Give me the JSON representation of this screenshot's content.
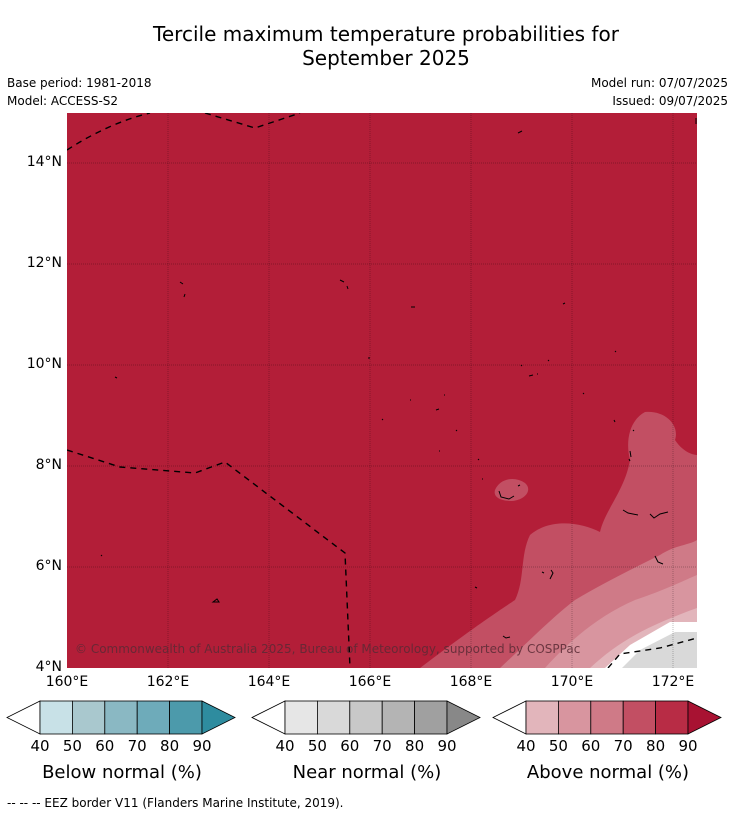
{
  "header": {
    "title_line1": "Tercile maximum temperature probabilities for",
    "title_line2": "September 2025",
    "base_period": "Base period: 1981-2018",
    "model": "Model: ACCESS-S2",
    "model_run": "Model run: 07/07/2025",
    "issued": "Issued: 09/07/2025"
  },
  "map": {
    "lat_labels": [
      "14°N",
      "12°N",
      "10°N",
      "8°N",
      "6°N",
      "4°N"
    ],
    "lon_labels": [
      "160°E",
      "162°E",
      "164°E",
      "166°E",
      "168°E",
      "170°E",
      "172°E"
    ],
    "attribution": "© Commonwealth of Australia 2025, Bureau of Meteorology, supported by COSPPac",
    "colors": {
      "above_90": "#b31e38",
      "above_80": "#c24f63",
      "above_70": "#cf7a87",
      "above_60": "#d8959f",
      "above_50": "#e2b5bb",
      "near_normal": "#d9d9d9"
    }
  },
  "colorbars": [
    {
      "title": "Below normal (%)",
      "ticks": [
        "40",
        "50",
        "60",
        "70",
        "80",
        "90"
      ],
      "colors": [
        "#c8e1e7",
        "#a9c8ce",
        "#8ab8c3",
        "#6eabba",
        "#4c9aab",
        "#2e8c9f"
      ]
    },
    {
      "title": "Near normal (%)",
      "ticks": [
        "40",
        "50",
        "60",
        "70",
        "80",
        "90"
      ],
      "colors": [
        "#e6e6e6",
        "#d9d9d9",
        "#c8c8c8",
        "#b4b4b4",
        "#a0a0a0",
        "#888888"
      ]
    },
    {
      "title": "Above normal (%)",
      "ticks": [
        "40",
        "50",
        "60",
        "70",
        "80",
        "90"
      ],
      "colors": [
        "#e2b5bb",
        "#d8959f",
        "#cf7a87",
        "#c24f63",
        "#b82c45",
        "#a81232"
      ]
    }
  ],
  "footnote": "--  --  -- EEZ border V11 (Flanders Marine Institute, 2019)."
}
